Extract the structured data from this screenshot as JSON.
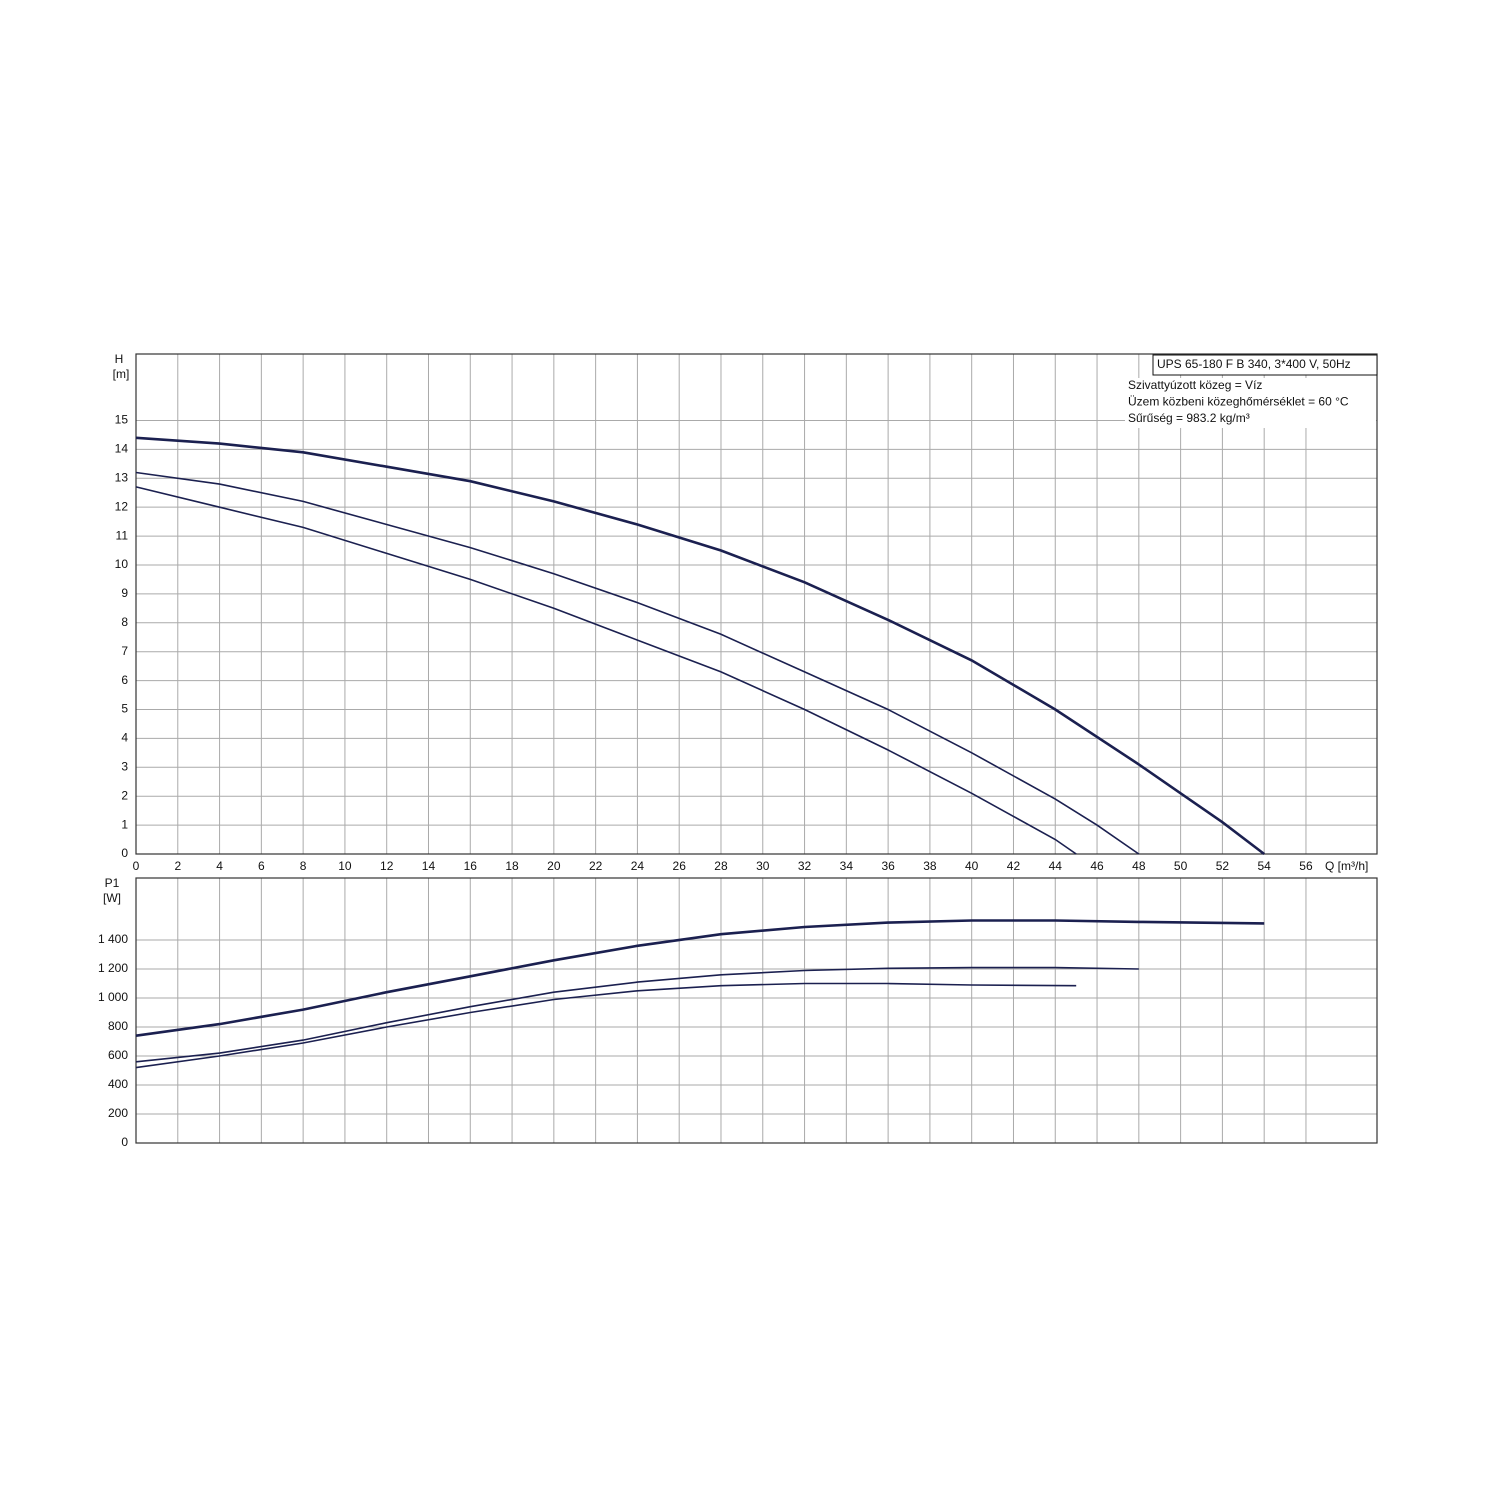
{
  "chart_data": [
    {
      "type": "line",
      "y_label": "H",
      "y_unit": "[m]",
      "x_label": "Q [m³/h]",
      "xlim": [
        0,
        59.4
      ],
      "xticks": [
        0,
        2,
        4,
        6,
        8,
        10,
        12,
        14,
        16,
        18,
        20,
        22,
        24,
        26,
        28,
        30,
        32,
        34,
        36,
        38,
        40,
        42,
        44,
        46,
        48,
        50,
        52,
        54,
        56
      ],
      "ylim": [
        0,
        17.3
      ],
      "yticks": [
        0,
        1,
        2,
        3,
        4,
        5,
        6,
        7,
        8,
        9,
        10,
        11,
        12,
        13,
        14,
        15
      ],
      "grid": true,
      "annotations": {
        "box": "UPS 65-180 F B 340, 3*400 V, 50Hz",
        "lines": [
          "Szivattyúzott közeg = Víz",
          "Üzem közbeni közeghőmérséklet = 60 °C",
          "Sűrűség = 983.2 kg/m³"
        ]
      },
      "series": [
        {
          "color": "#1b2050",
          "x": [
            0,
            4,
            8,
            12,
            16,
            20,
            24,
            28,
            32,
            36,
            40,
            44,
            48,
            50,
            52,
            54
          ],
          "values": [
            14.4,
            14.2,
            13.9,
            13.4,
            12.9,
            12.2,
            11.4,
            10.5,
            9.4,
            8.1,
            6.7,
            5.0,
            3.1,
            2.1,
            1.1,
            0
          ]
        },
        {
          "color": "#1b2050",
          "x": [
            0,
            4,
            8,
            12,
            16,
            20,
            24,
            28,
            32,
            36,
            40,
            44,
            46,
            48
          ],
          "values": [
            13.2,
            12.8,
            12.2,
            11.4,
            10.6,
            9.7,
            8.7,
            7.6,
            6.3,
            5.0,
            3.5,
            1.9,
            1.0,
            0
          ]
        },
        {
          "color": "#1b2050",
          "x": [
            0,
            4,
            8,
            12,
            16,
            20,
            24,
            28,
            32,
            36,
            40,
            42,
            44,
            45
          ],
          "values": [
            12.7,
            12.0,
            11.3,
            10.4,
            9.5,
            8.5,
            7.4,
            6.3,
            5.0,
            3.6,
            2.1,
            1.3,
            0.5,
            0
          ]
        }
      ]
    },
    {
      "type": "line",
      "y_label": "P1",
      "y_unit": "[W]",
      "xlim": [
        0,
        59.4
      ],
      "ylim": [
        0,
        1828
      ],
      "yticks": [
        0,
        200,
        400,
        600,
        800,
        {
          "value": 1000,
          "label": "1 000"
        },
        {
          "value": 1200,
          "label": "1 200"
        },
        {
          "value": 1400,
          "label": "1 400"
        }
      ],
      "grid": true,
      "series": [
        {
          "color": "#1b2050",
          "x": [
            0,
            4,
            8,
            12,
            16,
            20,
            24,
            28,
            32,
            36,
            40,
            44,
            48,
            54
          ],
          "values": [
            740,
            820,
            920,
            1040,
            1150,
            1260,
            1360,
            1440,
            1490,
            1520,
            1535,
            1535,
            1525,
            1515
          ]
        },
        {
          "color": "#1b2050",
          "x": [
            0,
            4,
            8,
            12,
            16,
            20,
            24,
            28,
            32,
            36,
            40,
            44,
            48
          ],
          "values": [
            560,
            620,
            710,
            830,
            940,
            1040,
            1110,
            1160,
            1190,
            1205,
            1210,
            1210,
            1200
          ]
        },
        {
          "color": "#1b2050",
          "x": [
            0,
            4,
            8,
            12,
            16,
            20,
            24,
            28,
            32,
            36,
            40,
            45
          ],
          "values": [
            520,
            600,
            690,
            800,
            900,
            990,
            1050,
            1085,
            1100,
            1100,
            1090,
            1085
          ]
        }
      ]
    }
  ]
}
